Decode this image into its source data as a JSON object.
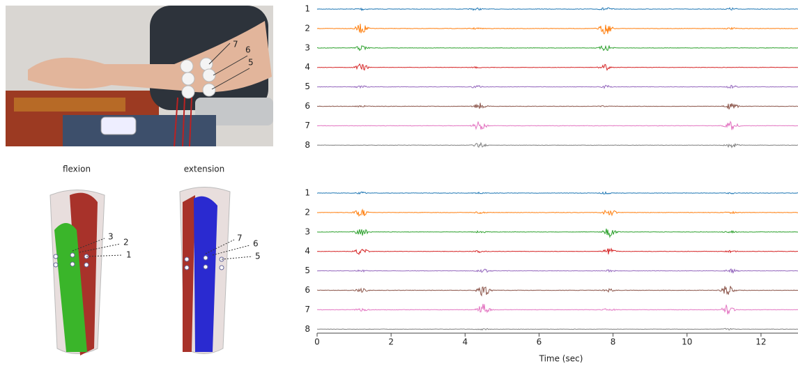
{
  "photo": {
    "electrode_labels": [
      "7",
      "6",
      "5"
    ]
  },
  "diagrams": [
    {
      "title": "flexion",
      "labels": [
        "3",
        "2",
        "1"
      ]
    },
    {
      "title": "extension",
      "labels": [
        "7",
        "6",
        "5"
      ]
    }
  ],
  "emg": {
    "x_label": "Time (sec)",
    "xlim": [
      0,
      13
    ],
    "xticks": [
      0,
      2,
      4,
      6,
      8,
      10,
      12
    ],
    "panels": [
      {
        "channels": [
          {
            "label": "1",
            "color": "#1f77b4",
            "bursts": [
              [
                1.2,
                0.25
              ],
              [
                4.3,
                0.25
              ],
              [
                7.8,
                0.35
              ],
              [
                11.2,
                0.25
              ]
            ]
          },
          {
            "label": "2",
            "color": "#ff7f0e",
            "bursts": [
              [
                1.2,
                1.0
              ],
              [
                4.3,
                0.15
              ],
              [
                7.8,
                1.2
              ],
              [
                11.2,
                0.15
              ]
            ]
          },
          {
            "label": "3",
            "color": "#2ca02c",
            "bursts": [
              [
                1.2,
                0.6
              ],
              [
                7.8,
                0.6
              ]
            ]
          },
          {
            "label": "4",
            "color": "#d62728",
            "bursts": [
              [
                1.2,
                0.8
              ],
              [
                4.3,
                0.15
              ],
              [
                7.8,
                0.6
              ]
            ]
          },
          {
            "label": "5",
            "color": "#9467bd",
            "bursts": [
              [
                1.2,
                0.3
              ],
              [
                4.3,
                0.3
              ],
              [
                7.8,
                0.3
              ],
              [
                11.2,
                0.3
              ]
            ]
          },
          {
            "label": "6",
            "color": "#8c564b",
            "bursts": [
              [
                1.2,
                0.15
              ],
              [
                4.4,
                0.8
              ],
              [
                7.8,
                0.15
              ],
              [
                11.2,
                0.7
              ]
            ]
          },
          {
            "label": "7",
            "color": "#e377c2",
            "bursts": [
              [
                4.4,
                1.1
              ],
              [
                11.2,
                1.1
              ]
            ]
          },
          {
            "label": "8",
            "color": "#7f7f7f",
            "bursts": [
              [
                4.4,
                0.5
              ],
              [
                11.2,
                0.5
              ]
            ]
          }
        ]
      },
      {
        "channels": [
          {
            "label": "1",
            "color": "#1f77b4",
            "bursts": [
              [
                1.2,
                0.2
              ],
              [
                4.4,
                0.15
              ],
              [
                7.8,
                0.2
              ],
              [
                11.2,
                0.15
              ]
            ]
          },
          {
            "label": "2",
            "color": "#ff7f0e",
            "bursts": [
              [
                1.2,
                0.9
              ],
              [
                4.4,
                0.2
              ],
              [
                7.9,
                0.8
              ],
              [
                11.2,
                0.2
              ]
            ]
          },
          {
            "label": "3",
            "color": "#2ca02c",
            "bursts": [
              [
                1.2,
                1.0
              ],
              [
                4.4,
                0.2
              ],
              [
                7.9,
                1.0
              ],
              [
                11.2,
                0.2
              ]
            ]
          },
          {
            "label": "4",
            "color": "#d62728",
            "bursts": [
              [
                1.2,
                0.7
              ],
              [
                4.4,
                0.2
              ],
              [
                7.9,
                0.7
              ],
              [
                11.2,
                0.2
              ]
            ]
          },
          {
            "label": "5",
            "color": "#9467bd",
            "bursts": [
              [
                1.2,
                0.2
              ],
              [
                4.5,
                0.4
              ],
              [
                7.9,
                0.2
              ],
              [
                11.2,
                0.4
              ]
            ]
          },
          {
            "label": "6",
            "color": "#8c564b",
            "bursts": [
              [
                1.2,
                0.4
              ],
              [
                4.5,
                1.2
              ],
              [
                7.9,
                0.3
              ],
              [
                11.1,
                1.1
              ]
            ]
          },
          {
            "label": "7",
            "color": "#e377c2",
            "bursts": [
              [
                1.2,
                0.3
              ],
              [
                4.5,
                1.2
              ],
              [
                7.9,
                0.3
              ],
              [
                11.1,
                1.1
              ]
            ]
          },
          {
            "label": "8",
            "color": "#7f7f7f",
            "bursts": [
              [
                4.5,
                0.15
              ],
              [
                11.1,
                0.15
              ]
            ]
          }
        ]
      }
    ]
  }
}
